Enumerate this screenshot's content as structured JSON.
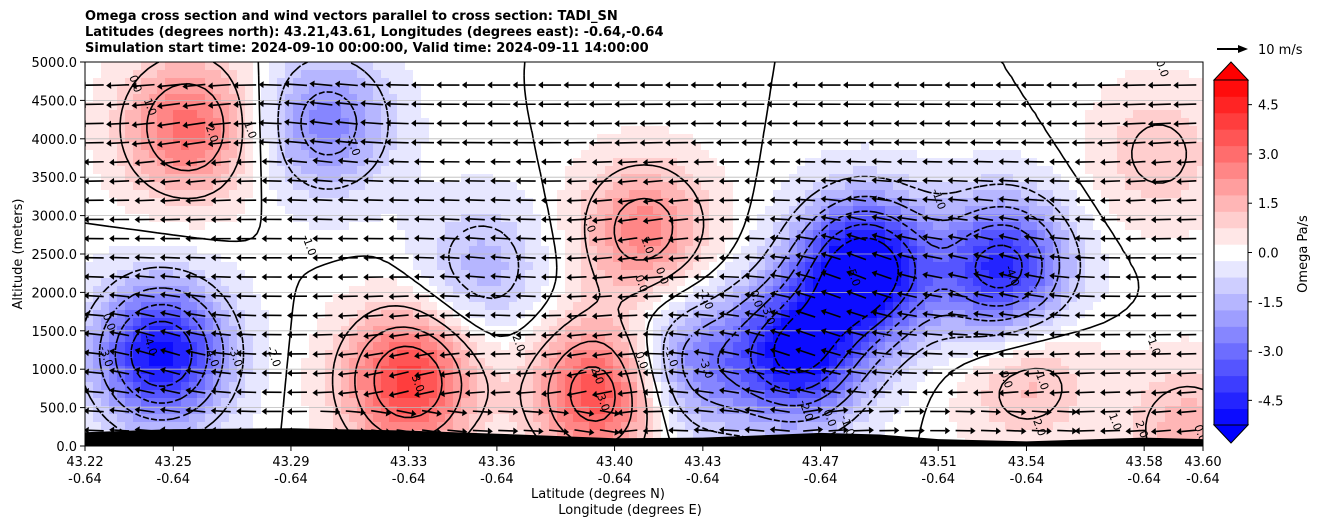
{
  "figure": {
    "title_lines": [
      "Omega cross section and wind vectors parallel to cross section: TADI_SN",
      "Latitudes (degrees north): 43.21,43.61, Longitudes (degrees east): -0.64,-0.64",
      "Simulation start time: 2024-09-10 00:00:00, Valid time: 2024-09-11 14:00:00"
    ]
  },
  "chart_data": {
    "type": "heatmap",
    "title": "Omega cross section and wind vectors parallel to cross section: TADI_SN",
    "xlabel": "Latitude (degrees N)",
    "xlabel2": "Longitude (degrees E)",
    "ylabel": "Altitude (meters)",
    "colorbar_label": "Omega Pa/s",
    "ylim": [
      0,
      5000
    ],
    "xlim": [
      43.22,
      43.6
    ],
    "yticks": [
      "0.0",
      "500.0",
      "1000.0",
      "1500.0",
      "2000.0",
      "2500.0",
      "3000.0",
      "3500.0",
      "4000.0",
      "4500.0",
      "5000.0"
    ],
    "xticks": [
      {
        "lat": "43.22",
        "lon": "-0.64"
      },
      {
        "lat": "43.25",
        "lon": "-0.64"
      },
      {
        "lat": "43.29",
        "lon": "-0.64"
      },
      {
        "lat": "43.33",
        "lon": "-0.64"
      },
      {
        "lat": "43.36",
        "lon": "-0.64"
      },
      {
        "lat": "43.40",
        "lon": "-0.64"
      },
      {
        "lat": "43.43",
        "lon": "-0.64"
      },
      {
        "lat": "43.47",
        "lon": "-0.64"
      },
      {
        "lat": "43.51",
        "lon": "-0.64"
      },
      {
        "lat": "43.54",
        "lon": "-0.64"
      },
      {
        "lat": "43.58",
        "lon": "-0.64"
      },
      {
        "lat": "43.60",
        "lon": "-0.64"
      }
    ],
    "colorbar": {
      "range": [
        -5.25,
        5.25
      ],
      "extend": "both",
      "ticks": [
        "-4.5",
        "-3.0",
        "-1.5",
        "0.0",
        "1.5",
        "3.0",
        "4.5"
      ],
      "tick_values": [
        -4.5,
        -3.0,
        -1.5,
        0.0,
        1.5,
        3.0,
        4.5
      ],
      "cmap": "bwr"
    },
    "quiver_key": {
      "label": "10 m/s",
      "speed": 10
    },
    "grid": "horizontal",
    "omega_centers": [
      {
        "lat": 43.246,
        "z": 1200,
        "value": -5.0
      },
      {
        "lat": 43.255,
        "z": 4150,
        "value": 3.0
      },
      {
        "lat": 43.302,
        "z": 4200,
        "value": -2.5
      },
      {
        "lat": 43.33,
        "z": 850,
        "value": 4.0
      },
      {
        "lat": 43.395,
        "z": 700,
        "value": 3.8
      },
      {
        "lat": 43.355,
        "z": 2300,
        "value": -1.5
      },
      {
        "lat": 43.41,
        "z": 2800,
        "value": 2.5
      },
      {
        "lat": 43.425,
        "z": 1050,
        "value": -2.5
      },
      {
        "lat": 43.485,
        "z": 2300,
        "value": -6.0
      },
      {
        "lat": 43.462,
        "z": 1200,
        "value": -5.0
      },
      {
        "lat": 43.532,
        "z": 2300,
        "value": -4.5
      },
      {
        "lat": 43.54,
        "z": 900,
        "value": 1.5
      },
      {
        "lat": 43.585,
        "z": 3800,
        "value": 1.2
      },
      {
        "lat": 43.595,
        "z": 200,
        "value": 1.5
      }
    ],
    "contour_labels": [
      {
        "lat": 43.236,
        "z": 4700,
        "text": "0.0"
      },
      {
        "lat": 43.241,
        "z": 4400,
        "text": "1.0"
      },
      {
        "lat": 43.262,
        "z": 4050,
        "text": "2.0"
      },
      {
        "lat": 43.275,
        "z": 4100,
        "text": "1.0"
      },
      {
        "lat": 43.31,
        "z": 3900,
        "text": "-2.0"
      },
      {
        "lat": 43.295,
        "z": 2600,
        "text": "-1.0"
      },
      {
        "lat": 43.39,
        "z": 2900,
        "text": "-1.0"
      },
      {
        "lat": 43.41,
        "z": 2600,
        "text": "1.0"
      },
      {
        "lat": 43.415,
        "z": 2200,
        "text": "0.0"
      },
      {
        "lat": 43.408,
        "z": 2100,
        "text": "0.0"
      },
      {
        "lat": 43.43,
        "z": 1900,
        "text": "-1.0"
      },
      {
        "lat": 43.447,
        "z": 1900,
        "text": "0.0"
      },
      {
        "lat": 43.451,
        "z": 1700,
        "text": "-3.0"
      },
      {
        "lat": 43.48,
        "z": 2200,
        "text": "-5.0"
      },
      {
        "lat": 43.509,
        "z": 3200,
        "text": "-1.0"
      },
      {
        "lat": 43.534,
        "z": 2200,
        "text": "-4.0"
      },
      {
        "lat": 43.227,
        "z": 1600,
        "text": "0.0"
      },
      {
        "lat": 43.226,
        "z": 1150,
        "text": "-3.0"
      },
      {
        "lat": 43.241,
        "z": 1300,
        "text": "-4.0"
      },
      {
        "lat": 43.262,
        "z": 1150,
        "text": "-4.0"
      },
      {
        "lat": 43.27,
        "z": 1150,
        "text": "-3.0"
      },
      {
        "lat": 43.283,
        "z": 1150,
        "text": "-2.0"
      },
      {
        "lat": 43.332,
        "z": 800,
        "text": "3.0"
      },
      {
        "lat": 43.366,
        "z": 1350,
        "text": "-2.0"
      },
      {
        "lat": 43.393,
        "z": 900,
        "text": "2.0"
      },
      {
        "lat": 43.395,
        "z": 550,
        "text": "3.0"
      },
      {
        "lat": 43.408,
        "z": 1100,
        "text": "0.0"
      },
      {
        "lat": 43.418,
        "z": 1150,
        "text": "-1.0"
      },
      {
        "lat": 43.43,
        "z": 1000,
        "text": "-3.0"
      },
      {
        "lat": 43.464,
        "z": 450,
        "text": "-2.0"
      },
      {
        "lat": 43.472,
        "z": 350,
        "text": "0.0"
      },
      {
        "lat": 43.478,
        "z": 250,
        "text": "-1.0"
      },
      {
        "lat": 43.532,
        "z": 850,
        "text": "0.0"
      },
      {
        "lat": 43.544,
        "z": 850,
        "text": "-1.0"
      },
      {
        "lat": 43.543,
        "z": 250,
        "text": "-2.0"
      },
      {
        "lat": 43.582,
        "z": 1300,
        "text": "-1.0"
      },
      {
        "lat": 43.569,
        "z": 300,
        "text": "1.0"
      },
      {
        "lat": 43.578,
        "z": 200,
        "text": "2.0"
      },
      {
        "lat": 43.598,
        "z": 150,
        "text": "0.0"
      },
      {
        "lat": 43.585,
        "z": 4900,
        "text": "0.0"
      }
    ]
  }
}
